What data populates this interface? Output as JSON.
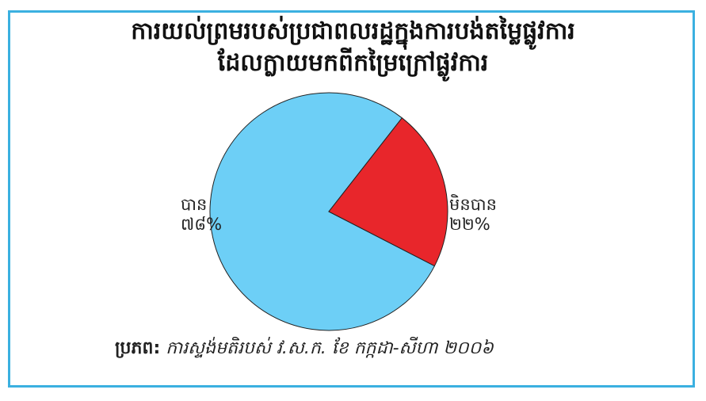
{
  "chart_data": {
    "type": "pie",
    "title_lines": [
      "ការយល់ព្រមរបស់ប្រជាពលរដ្ឋក្នុងការបង់តម្លៃផ្លូវការ",
      "ដែលក្លាយមកពីកម្រៃក្រៅផ្លូវការ"
    ],
    "slices": [
      {
        "label": "បាន",
        "value_label": "៧៨%",
        "value": 78,
        "color": "#6dcff6"
      },
      {
        "label": "មិនបាន",
        "value_label": "២២%",
        "value": 22,
        "color": "#e8262b"
      }
    ],
    "source_label": "ប្រភព:",
    "source_text": "ការស្ទង់មតិរបស់ វ.ស.ក. ខែ កក្កដា-សីហា ២០០៦"
  },
  "colors": {
    "frame": "#3bb0e0",
    "outline": "#222222"
  }
}
